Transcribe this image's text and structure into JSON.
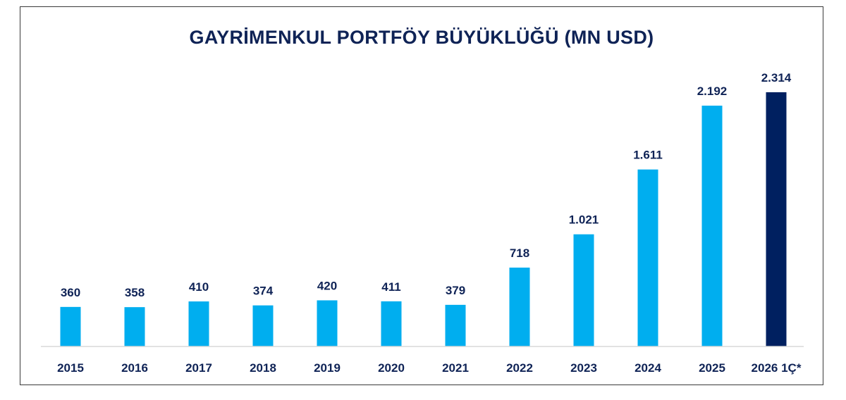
{
  "chart_data": {
    "type": "bar",
    "title": "GAYRİMENKUL PORTFÖY BÜYÜKLÜĞÜ (MN USD)",
    "categories": [
      "2015",
      "2016",
      "2017",
      "2018",
      "2019",
      "2020",
      "2021",
      "2022",
      "2023",
      "2024",
      "2025",
      "2026 1Ç*"
    ],
    "values": [
      360,
      358,
      410,
      374,
      420,
      411,
      379,
      718,
      1021,
      1611,
      2192,
      2314
    ],
    "value_labels": [
      "360",
      "358",
      "410",
      "374",
      "420",
      "411",
      "379",
      "718",
      "1.021",
      "1.611",
      "2.192",
      "2.314"
    ],
    "colors": {
      "default_bar": "#00aeef",
      "highlight_bar": "#002060",
      "text": "#0f2356"
    },
    "highlight_index": 11,
    "ylim": [
      0,
      2314
    ],
    "grid": false,
    "legend": "none"
  }
}
